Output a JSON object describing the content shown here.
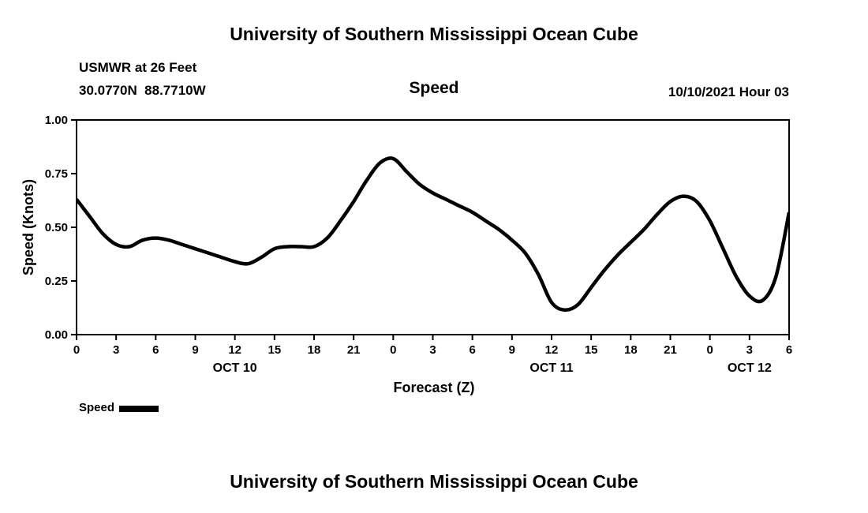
{
  "page": {
    "top_title": "University of Southern Mississippi Ocean Cube",
    "bottom_title": "University of Southern Mississippi Ocean Cube"
  },
  "header": {
    "station": "USMWR at 26 Feet",
    "coordinates": "30.0770N  88.7710W",
    "plot_title": "Speed",
    "datetime": "10/10/2021 Hour 03"
  },
  "chart_data": {
    "type": "line",
    "title": "Speed",
    "xlabel": "Forecast (Z)",
    "ylabel": "Speed (Knots)",
    "xlim": [
      0,
      54
    ],
    "ylim": [
      0.0,
      1.0
    ],
    "grid": false,
    "line_color": "#000000",
    "x_ticks": [
      0,
      3,
      6,
      9,
      12,
      15,
      18,
      21,
      24,
      27,
      30,
      33,
      36,
      39,
      42,
      45,
      48,
      51,
      54
    ],
    "x_tick_labels": [
      "0",
      "3",
      "6",
      "9",
      "12",
      "15",
      "18",
      "21",
      "0",
      "3",
      "6",
      "9",
      "12",
      "15",
      "18",
      "21",
      "0",
      "3",
      "6"
    ],
    "y_ticks": [
      0.0,
      0.25,
      0.5,
      0.75,
      1.0
    ],
    "y_tick_labels": [
      "0.00",
      "0.25",
      "0.50",
      "0.75",
      "1.00"
    ],
    "date_labels": [
      {
        "label": "OCT 10",
        "hour": 12
      },
      {
        "label": "OCT 11",
        "hour": 36
      },
      {
        "label": "OCT 12",
        "hour": 51
      }
    ],
    "series": [
      {
        "name": "Speed",
        "color": "#000000",
        "x": [
          0,
          1,
          2,
          3,
          4,
          5,
          6,
          7,
          8,
          9,
          10,
          11,
          12,
          13,
          14,
          15,
          16,
          17,
          18,
          19,
          20,
          21,
          22,
          23,
          24,
          25,
          26,
          27,
          28,
          29,
          30,
          31,
          32,
          33,
          34,
          35,
          36,
          37,
          38,
          39,
          40,
          41,
          42,
          43,
          44,
          45,
          46,
          47,
          48,
          49,
          50,
          51,
          52,
          53,
          54
        ],
        "values": [
          0.63,
          0.55,
          0.47,
          0.42,
          0.41,
          0.44,
          0.45,
          0.44,
          0.42,
          0.4,
          0.38,
          0.36,
          0.34,
          0.33,
          0.36,
          0.4,
          0.41,
          0.41,
          0.41,
          0.45,
          0.53,
          0.62,
          0.72,
          0.8,
          0.82,
          0.76,
          0.7,
          0.66,
          0.63,
          0.6,
          0.57,
          0.53,
          0.49,
          0.44,
          0.38,
          0.28,
          0.15,
          0.115,
          0.14,
          0.22,
          0.3,
          0.37,
          0.43,
          0.49,
          0.56,
          0.62,
          0.645,
          0.62,
          0.53,
          0.4,
          0.27,
          0.18,
          0.16,
          0.27,
          0.57
        ]
      }
    ],
    "legend": {
      "label": "Speed",
      "position": "bottom-left"
    }
  }
}
